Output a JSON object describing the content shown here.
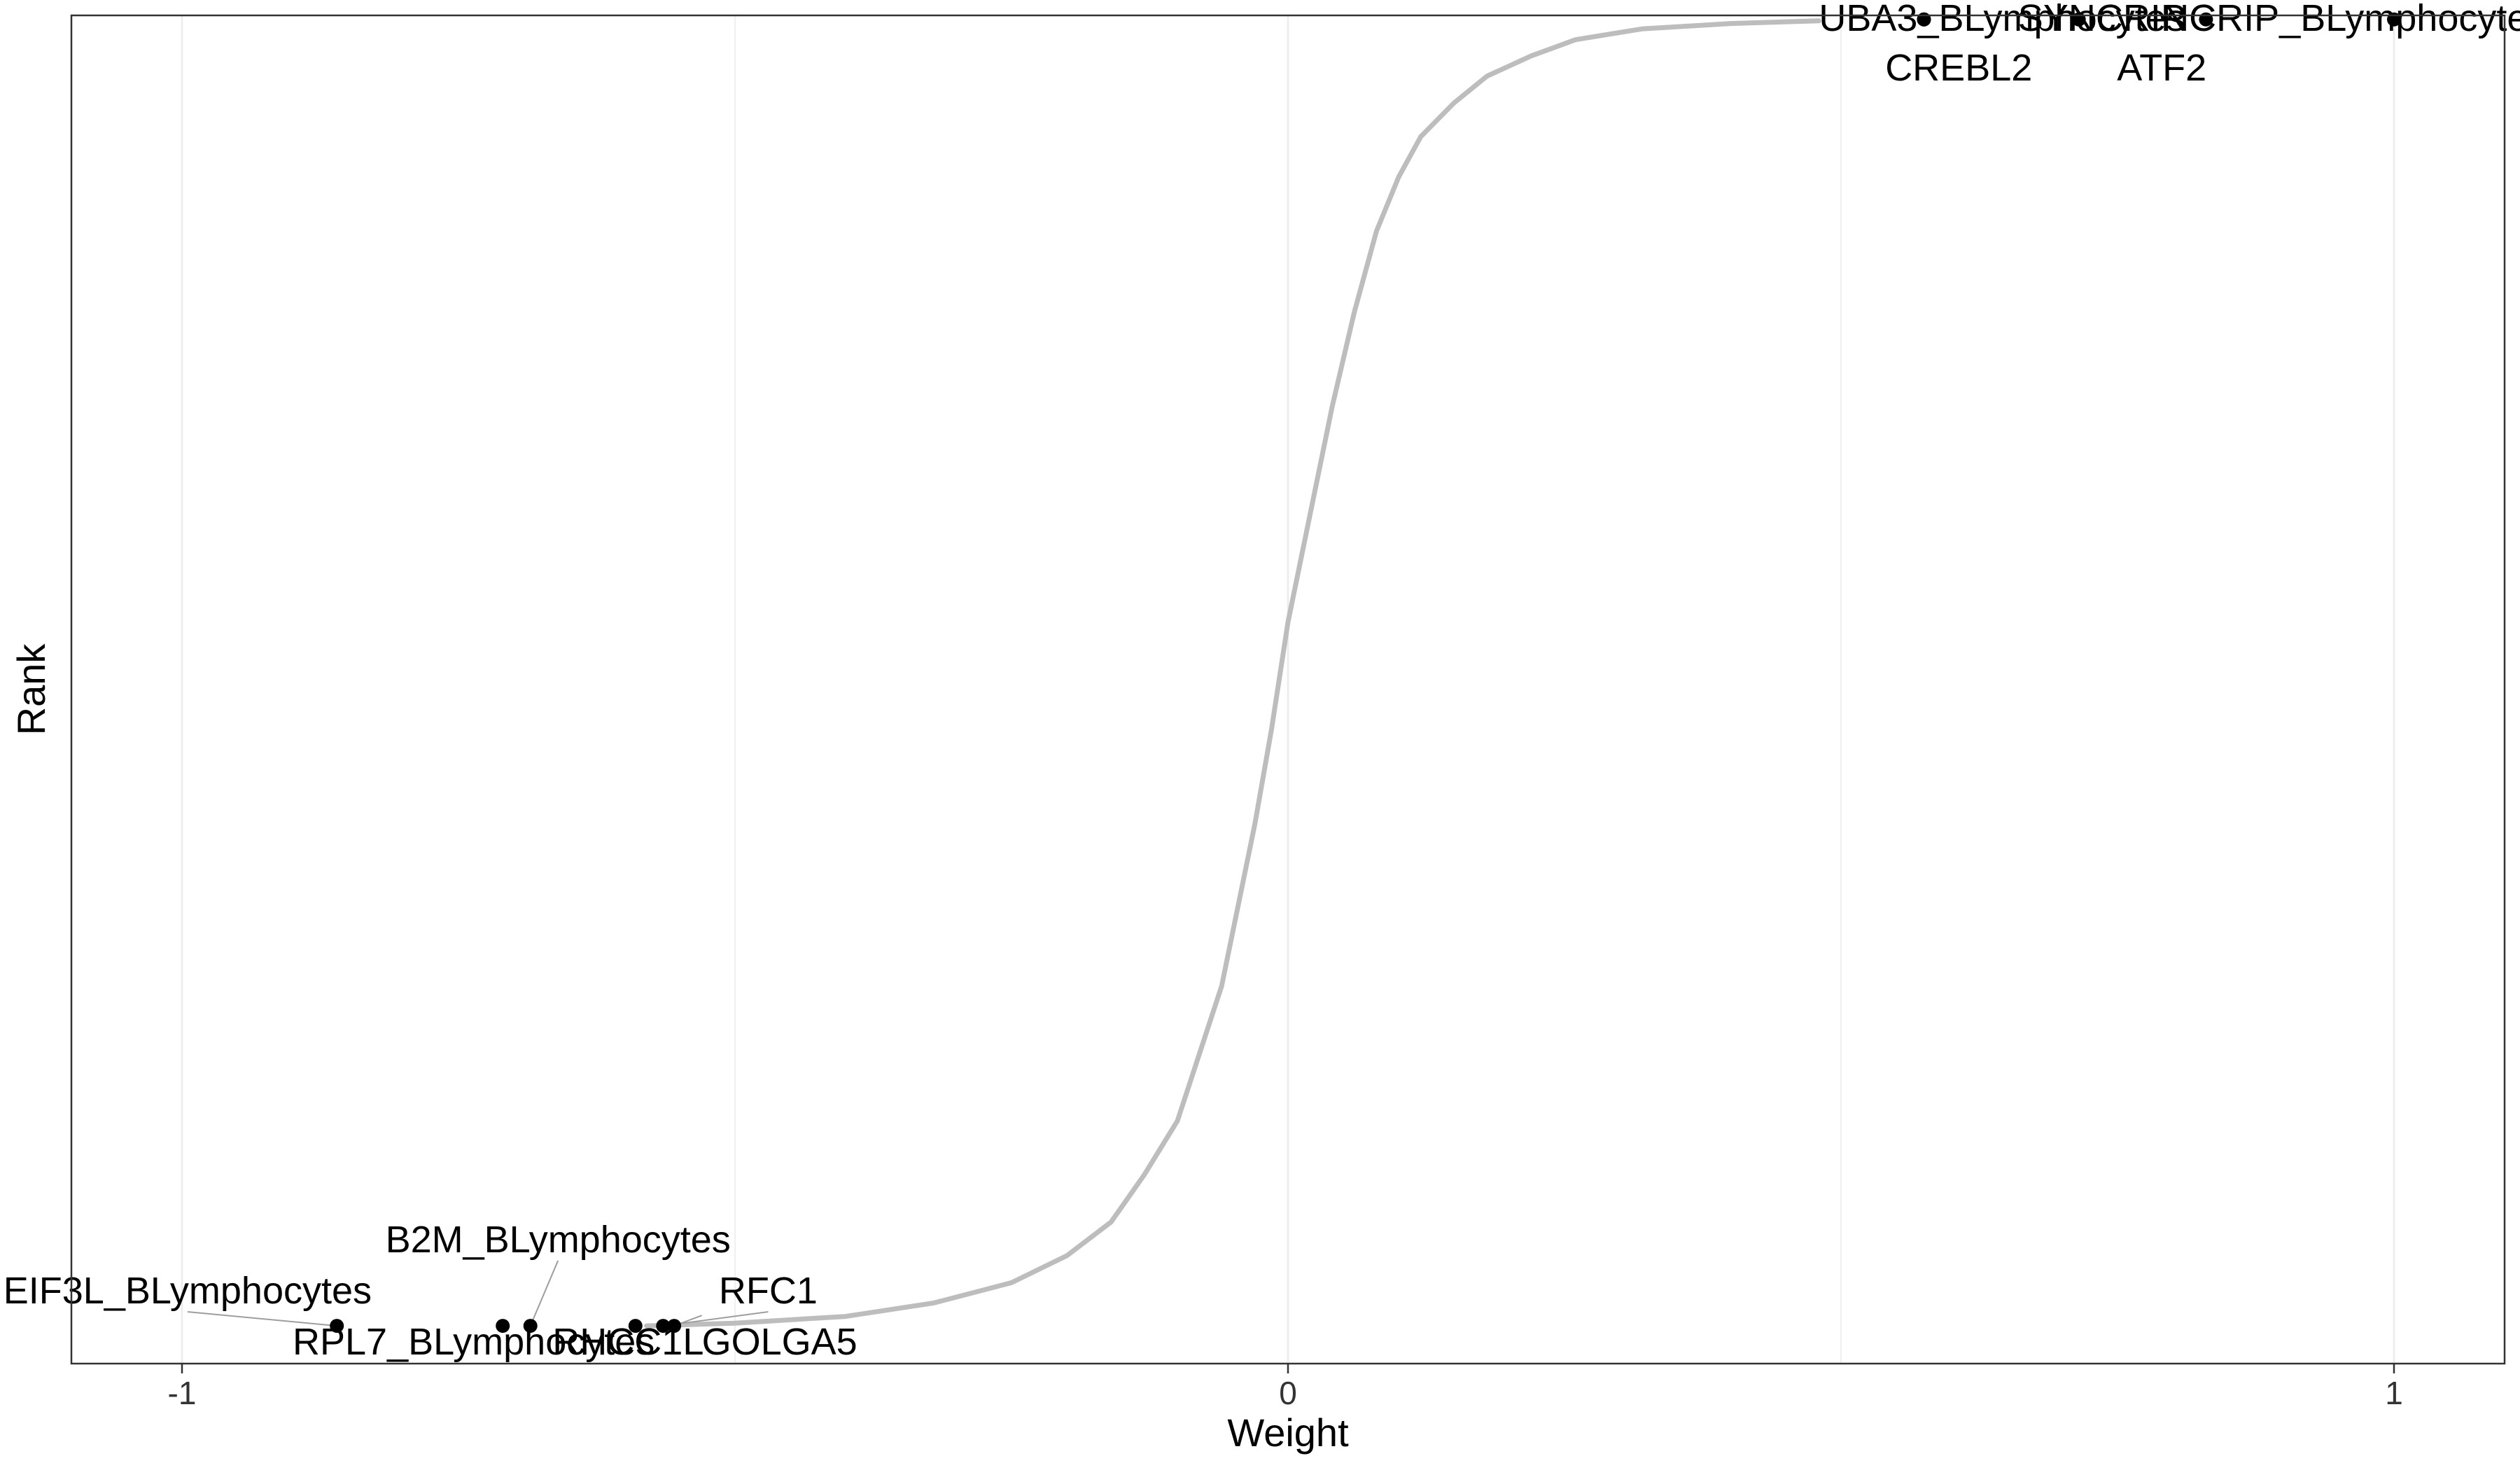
{
  "chart_data": {
    "type": "scatter",
    "xlabel": "Weight",
    "ylabel": "Rank",
    "xlim": [
      -1.1,
      1.1
    ],
    "ylim": [
      0,
      1
    ],
    "x_ticks": [
      {
        "value": -1,
        "label": "-1"
      },
      {
        "value": 0,
        "label": "0"
      },
      {
        "value": 1,
        "label": "1"
      }
    ],
    "minor_grid_x": [
      -0.5,
      0.5
    ],
    "y_ticks": [],
    "grid": true,
    "legend": "none",
    "colors": {
      "curve": "#bdbdbd",
      "points": "#000000",
      "grid": "#ebebeb",
      "panel_border": "#333333",
      "leader": "#9e9e9e"
    },
    "curve": {
      "description_note": "",
      "x": [
        -0.58,
        -0.5,
        -0.4,
        -0.32,
        -0.25,
        -0.2,
        -0.16,
        -0.13,
        -0.1,
        -0.08,
        -0.06,
        -0.045,
        -0.03,
        -0.015,
        0.0,
        0.02,
        0.04,
        0.06,
        0.08,
        0.1,
        0.12,
        0.15,
        0.18,
        0.22,
        0.26,
        0.32,
        0.4,
        0.48
      ],
      "y": [
        0.028,
        0.03,
        0.035,
        0.045,
        0.06,
        0.08,
        0.105,
        0.14,
        0.18,
        0.23,
        0.28,
        0.34,
        0.4,
        0.47,
        0.55,
        0.63,
        0.71,
        0.78,
        0.84,
        0.88,
        0.91,
        0.935,
        0.955,
        0.97,
        0.982,
        0.99,
        0.994,
        0.996
      ]
    },
    "points": [
      {
        "label": "EIF3L_BLymphocytes",
        "x": -0.86,
        "y": 0.028
      },
      {
        "label": "RPL7_BLymphocytes",
        "x": -0.71,
        "y": 0.028
      },
      {
        "label": "B2M_BLymphocytes",
        "x": -0.685,
        "y": 0.028
      },
      {
        "label": "RHCC1L",
        "x": -0.59,
        "y": 0.028
      },
      {
        "label": "RFC1",
        "x": -0.565,
        "y": 0.028
      },
      {
        "label": "GOLGA5",
        "x": -0.555,
        "y": 0.028
      },
      {
        "label": "UBA3_BLymphocytes",
        "x": 0.575,
        "y": 0.997
      },
      {
        "label": "CREBL2",
        "x": 0.575,
        "y": 0.997
      },
      {
        "label": "SYNCRIP",
        "x": 0.715,
        "y": 0.997
      },
      {
        "label": "ATF2",
        "x": 0.83,
        "y": 0.997
      },
      {
        "label": "NCRIP_BLymphocytes",
        "x": 1.0,
        "y": 0.997
      }
    ],
    "labels": [
      {
        "text": "EIF3L_BLymphocytes",
        "x": -0.995,
        "y": 0.054,
        "anchor": "middle",
        "leader": true
      },
      {
        "text": "RPL7_BLymphocytes",
        "x": -0.9,
        "y": 0.016,
        "anchor": "start",
        "leader": false
      },
      {
        "text": "B2M_BLymphocytes",
        "x": -0.66,
        "y": 0.092,
        "anchor": "middle",
        "leader": true
      },
      {
        "text": "RHCC1L",
        "x": -0.665,
        "y": 0.016,
        "anchor": "start",
        "leader": false
      },
      {
        "text": "RFC1",
        "x": -0.47,
        "y": 0.054,
        "anchor": "middle",
        "leader": true
      },
      {
        "text": "GOLGA5",
        "x": -0.53,
        "y": 0.016,
        "anchor": "start",
        "leader": true
      },
      {
        "text": "UBA3_BLymphocytes",
        "x": 0.48,
        "y": 0.998,
        "anchor": "start",
        "leader": false
      },
      {
        "text": "CREBL2",
        "x": 0.54,
        "y": 0.961,
        "anchor": "start",
        "leader": false
      },
      {
        "text": "SYNCRIP",
        "x": 0.66,
        "y": 0.998,
        "anchor": "start",
        "leader": false
      },
      {
        "text": "ATF2",
        "x": 0.79,
        "y": 0.961,
        "anchor": "middle",
        "leader": false
      },
      {
        "text": "NCRIP_BLymphocytes",
        "x": 0.79,
        "y": 0.998,
        "anchor": "start",
        "leader": false
      }
    ]
  }
}
